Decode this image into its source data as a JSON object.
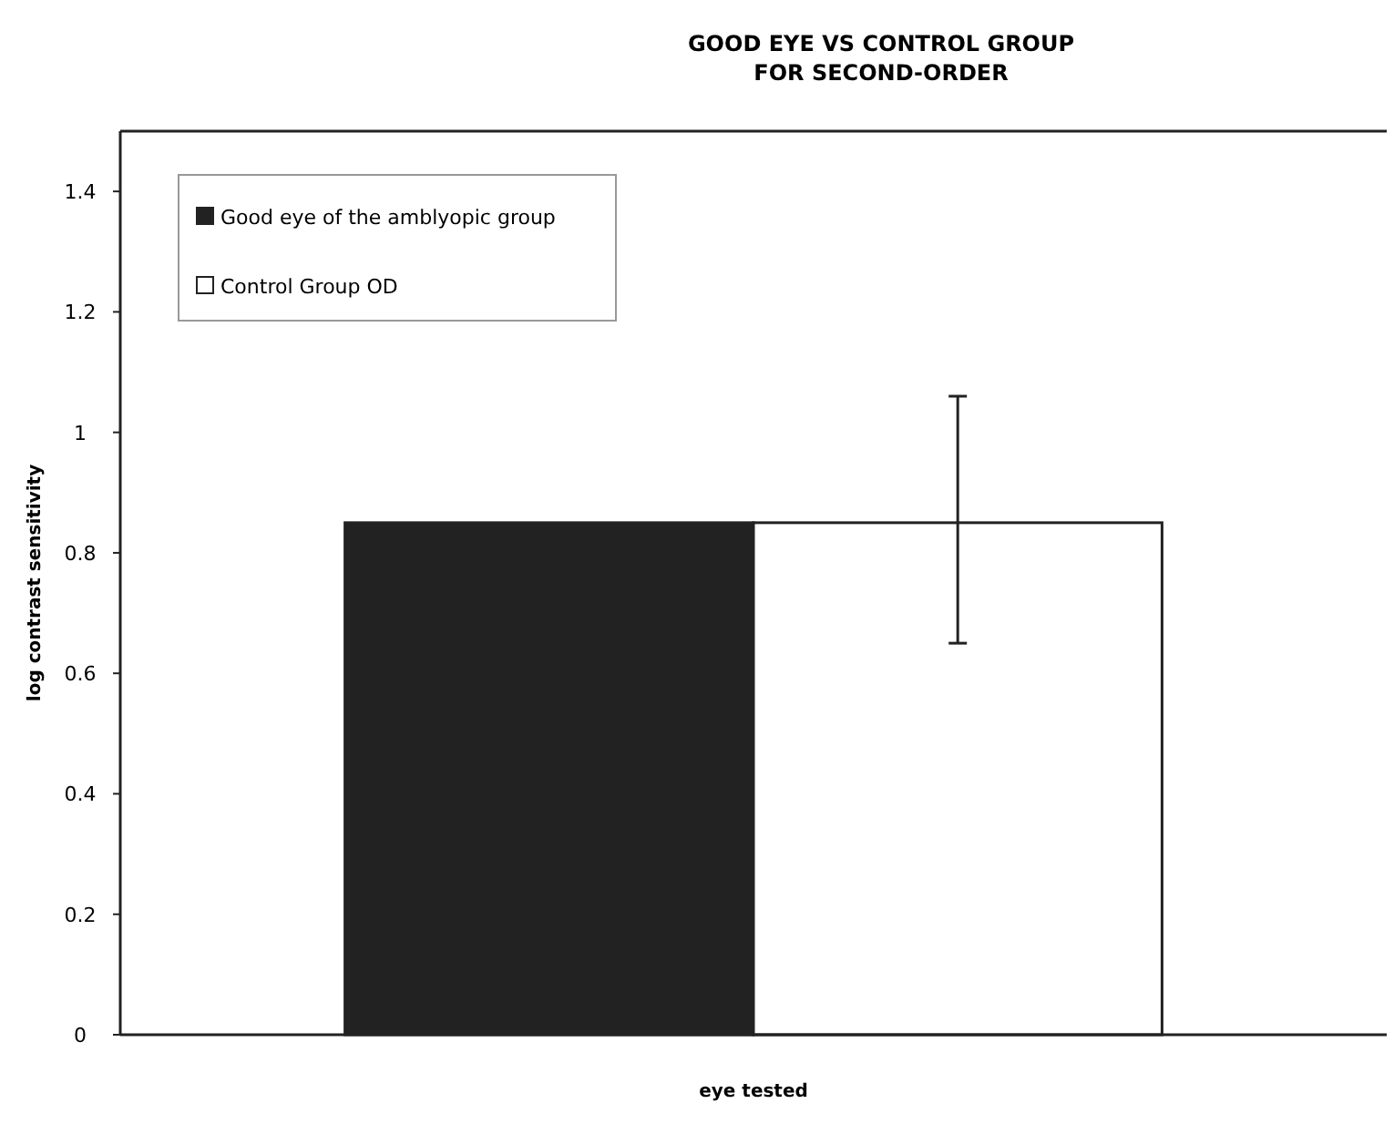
{
  "chart_data": {
    "type": "bar",
    "title": "GOOD EYE VS CONTROL GROUP\nFOR SECOND-ORDER",
    "xlabel": "eye tested",
    "ylabel": "log contrast sensitivity",
    "categories": [
      null
    ],
    "series": [
      {
        "name": "Good eye of the amblyopic group",
        "color": "#222222",
        "values": [
          0.85
        ],
        "errors": [
          null
        ]
      },
      {
        "name": "Control Group OD",
        "color": "#ffffff",
        "values": [
          0.85
        ],
        "errors": [
          [
            0.65,
            1.06
          ]
        ]
      }
    ],
    "ylim": [
      0,
      1.5
    ],
    "yticks": [
      0,
      0.2,
      0.4,
      0.6,
      0.8,
      1,
      1.2,
      1.4
    ],
    "grid": false,
    "legend": "top left"
  }
}
